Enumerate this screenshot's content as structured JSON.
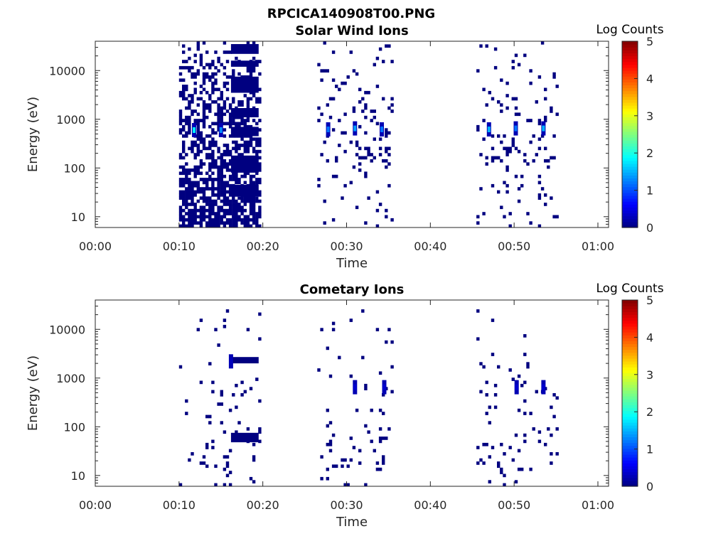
{
  "figure_title": "RPCICA140908T00.PNG",
  "chart_data": [
    {
      "type": "heatmap",
      "title": "Solar Wind Ions",
      "xlabel": "Time",
      "ylabel": "Energy (eV)",
      "x_ticks": [
        "00:00",
        "00:10",
        "00:20",
        "00:30",
        "00:40",
        "00:50",
        "01:00"
      ],
      "y_ticks": [
        "10",
        "100",
        "1000",
        "10000"
      ],
      "y_scale": "log",
      "xlim_minutes": [
        0,
        60
      ],
      "ylim": [
        6,
        40000
      ],
      "colorbar": {
        "label": "Log Counts",
        "ticks": [
          "0",
          "1",
          "2",
          "3",
          "4",
          "5"
        ],
        "range": [
          0,
          5
        ],
        "colormap": "jet"
      },
      "sweeps": [
        {
          "start_min": 10.0,
          "end_min": 19.5,
          "dense": true
        },
        {
          "start_min": 26.5,
          "end_min": 35.5,
          "dense": false
        },
        {
          "start_min": 45.5,
          "end_min": 55.0,
          "dense": false
        }
      ],
      "peaks": [
        {
          "time_min": 11.8,
          "energy_ev": 600,
          "log_counts": 1.8
        },
        {
          "time_min": 15.0,
          "energy_ev": 600,
          "log_counts": 1.3
        },
        {
          "time_min": 27.8,
          "energy_ev": 620,
          "log_counts": 1.2
        },
        {
          "time_min": 31.0,
          "energy_ev": 650,
          "log_counts": 1.4
        },
        {
          "time_min": 34.2,
          "energy_ev": 620,
          "log_counts": 1.2
        },
        {
          "time_min": 47.0,
          "energy_ev": 620,
          "log_counts": 1.5
        },
        {
          "time_min": 50.2,
          "energy_ev": 650,
          "log_counts": 1.2
        },
        {
          "time_min": 53.5,
          "energy_ev": 650,
          "log_counts": 1.5
        }
      ]
    },
    {
      "type": "heatmap",
      "title": "Cometary Ions",
      "xlabel": "Time",
      "ylabel": "Energy (eV)",
      "x_ticks": [
        "00:00",
        "00:10",
        "00:20",
        "00:30",
        "00:40",
        "00:50",
        "01:00"
      ],
      "y_ticks": [
        "10",
        "100",
        "1000",
        "10000"
      ],
      "y_scale": "log",
      "xlim_minutes": [
        0,
        60
      ],
      "ylim": [
        6,
        40000
      ],
      "colorbar": {
        "label": "Log Counts",
        "ticks": [
          "0",
          "1",
          "2",
          "3",
          "4",
          "5"
        ],
        "range": [
          0,
          5
        ],
        "colormap": "jet"
      },
      "sweeps": [
        {
          "start_min": 10.0,
          "end_min": 19.5,
          "dense": false
        },
        {
          "start_min": 26.5,
          "end_min": 35.5,
          "dense": false
        },
        {
          "start_min": 45.5,
          "end_min": 55.0,
          "dense": false
        }
      ],
      "peaks": [
        {
          "time_min": 16.2,
          "energy_ev": 2200,
          "log_counts": 0.3
        },
        {
          "time_min": 31.0,
          "energy_ev": 650,
          "log_counts": 0.4
        },
        {
          "time_min": 34.5,
          "energy_ev": 650,
          "log_counts": 0.4
        },
        {
          "time_min": 50.3,
          "energy_ev": 650,
          "log_counts": 0.4
        },
        {
          "time_min": 53.5,
          "energy_ev": 650,
          "log_counts": 0.4
        }
      ]
    }
  ]
}
